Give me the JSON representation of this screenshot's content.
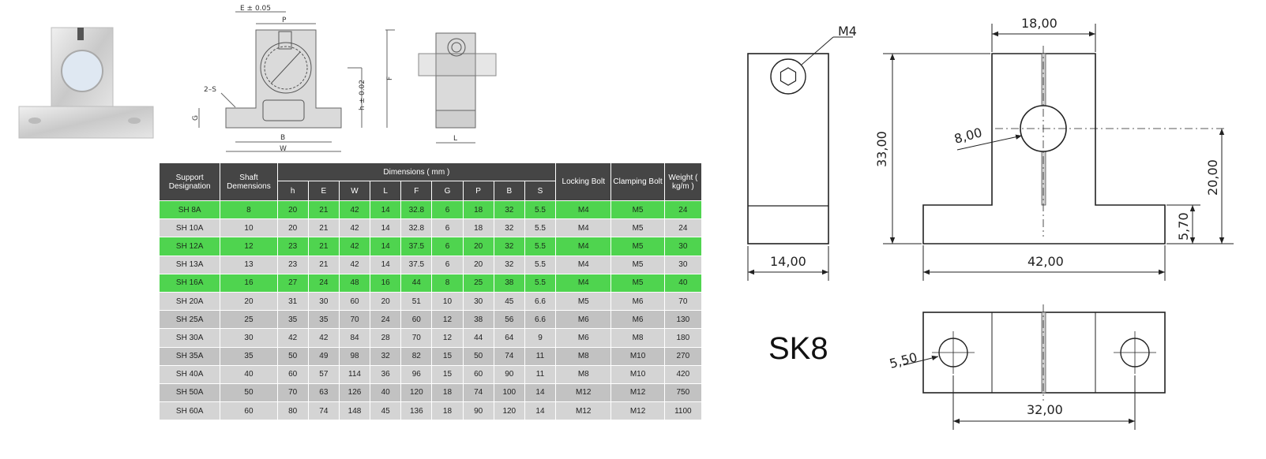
{
  "product_photo": {
    "description_icon": "shaft-support-icon"
  },
  "small_drawing": {
    "dim_E": "E ± 0.05",
    "dim_P": "P",
    "dim_F": "F",
    "dim_h": "h ± 0.02",
    "dim_2S": "2–S",
    "dim_G": "G",
    "dim_B": "B",
    "dim_W": "W",
    "dim_L": "L"
  },
  "table": {
    "group_header": "Dimensions ( mm )",
    "headers": {
      "support": "Support Designation",
      "shaft": "Shaft Demensions",
      "locking": "Locking Bolt",
      "clamping": "Clamping Bolt",
      "weight": "Weight ( kg/m )",
      "dims": [
        "h",
        "E",
        "W",
        "L",
        "F",
        "G",
        "P",
        "B",
        "S"
      ]
    },
    "rows": [
      {
        "name": "SH 8A",
        "shaft": "8",
        "dims": [
          "20",
          "21",
          "42",
          "14",
          "32.8",
          "6",
          "18",
          "32",
          "5.5"
        ],
        "lock": "M4",
        "clamp": "M5",
        "weight": "24",
        "highlight": true
      },
      {
        "name": "SH 10A",
        "shaft": "10",
        "dims": [
          "20",
          "21",
          "42",
          "14",
          "32.8",
          "6",
          "18",
          "32",
          "5.5"
        ],
        "lock": "M4",
        "clamp": "M5",
        "weight": "24",
        "highlight": false
      },
      {
        "name": "SH 12A",
        "shaft": "12",
        "dims": [
          "23",
          "21",
          "42",
          "14",
          "37.5",
          "6",
          "20",
          "32",
          "5.5"
        ],
        "lock": "M4",
        "clamp": "M5",
        "weight": "30",
        "highlight": true
      },
      {
        "name": "SH 13A",
        "shaft": "13",
        "dims": [
          "23",
          "21",
          "42",
          "14",
          "37.5",
          "6",
          "20",
          "32",
          "5.5"
        ],
        "lock": "M4",
        "clamp": "M5",
        "weight": "30",
        "highlight": false
      },
      {
        "name": "SH 16A",
        "shaft": "16",
        "dims": [
          "27",
          "24",
          "48",
          "16",
          "44",
          "8",
          "25",
          "38",
          "5.5"
        ],
        "lock": "M4",
        "clamp": "M5",
        "weight": "40",
        "highlight": true
      },
      {
        "name": "SH 20A",
        "shaft": "20",
        "dims": [
          "31",
          "30",
          "60",
          "20",
          "51",
          "10",
          "30",
          "45",
          "6.6"
        ],
        "lock": "M5",
        "clamp": "M6",
        "weight": "70",
        "highlight": false
      },
      {
        "name": "SH 25A",
        "shaft": "25",
        "dims": [
          "35",
          "35",
          "70",
          "24",
          "60",
          "12",
          "38",
          "56",
          "6.6"
        ],
        "lock": "M6",
        "clamp": "M6",
        "weight": "130",
        "highlight": false
      },
      {
        "name": "SH 30A",
        "shaft": "30",
        "dims": [
          "42",
          "42",
          "84",
          "28",
          "70",
          "12",
          "44",
          "64",
          "9"
        ],
        "lock": "M6",
        "clamp": "M8",
        "weight": "180",
        "highlight": false
      },
      {
        "name": "SH 35A",
        "shaft": "35",
        "dims": [
          "50",
          "49",
          "98",
          "32",
          "82",
          "15",
          "50",
          "74",
          "11"
        ],
        "lock": "M8",
        "clamp": "M10",
        "weight": "270",
        "highlight": false
      },
      {
        "name": "SH 40A",
        "shaft": "40",
        "dims": [
          "60",
          "57",
          "114",
          "36",
          "96",
          "15",
          "60",
          "90",
          "11"
        ],
        "lock": "M8",
        "clamp": "M10",
        "weight": "420",
        "highlight": false
      },
      {
        "name": "SH 50A",
        "shaft": "50",
        "dims": [
          "70",
          "63",
          "126",
          "40",
          "120",
          "18",
          "74",
          "100",
          "14"
        ],
        "lock": "M12",
        "clamp": "M12",
        "weight": "750",
        "highlight": false
      },
      {
        "name": "SH 60A",
        "shaft": "60",
        "dims": [
          "80",
          "74",
          "148",
          "45",
          "136",
          "18",
          "90",
          "120",
          "14"
        ],
        "lock": "M12",
        "clamp": "M12",
        "weight": "1100",
        "highlight": false
      }
    ]
  },
  "sk8_drawing": {
    "model": "SK8",
    "side_view": {
      "thread_label": "M4",
      "width_label": "14,00"
    },
    "front_view": {
      "top_width": "18,00",
      "height": "33,00",
      "bore": "8,00",
      "center_height": "20,00",
      "base_height": "5,70",
      "base_width": "42,00"
    },
    "top_view": {
      "hole_diameter": "5,50",
      "hole_spacing": "32,00"
    }
  },
  "colors": {
    "table_header": "#454545",
    "row_highlight": "#4fd44f",
    "row_light": "#d4d4d4",
    "row_dark": "#c2c2c2"
  }
}
